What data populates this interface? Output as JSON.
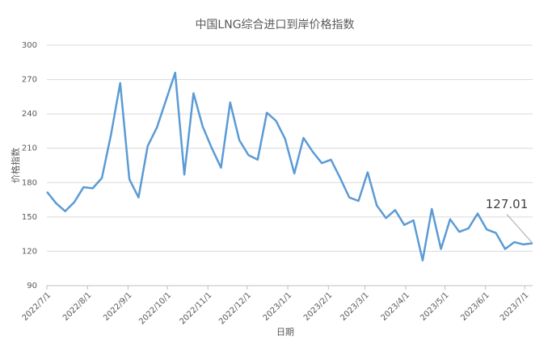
{
  "chart_data": {
    "type": "line",
    "title": "中国LNG综合进口到岸价格指数",
    "x_label": "日期",
    "y_label": "价格指数",
    "x": [
      "2022-07-01",
      "2022-07-08",
      "2022-07-15",
      "2022-07-22",
      "2022-07-29",
      "2022-08-05",
      "2022-08-12",
      "2022-08-19",
      "2022-08-26",
      "2022-09-02",
      "2022-09-09",
      "2022-09-16",
      "2022-09-23",
      "2022-09-30",
      "2022-10-07",
      "2022-10-14",
      "2022-10-21",
      "2022-10-28",
      "2022-11-04",
      "2022-11-11",
      "2022-11-18",
      "2022-11-25",
      "2022-12-02",
      "2022-12-09",
      "2022-12-16",
      "2022-12-23",
      "2022-12-30",
      "2023-01-06",
      "2023-01-13",
      "2023-01-20",
      "2023-01-27",
      "2023-02-03",
      "2023-02-10",
      "2023-02-17",
      "2023-02-24",
      "2023-03-03",
      "2023-03-10",
      "2023-03-17",
      "2023-03-24",
      "2023-03-31",
      "2023-04-07",
      "2023-04-14",
      "2023-04-21",
      "2023-04-28",
      "2023-05-05",
      "2023-05-12",
      "2023-05-19",
      "2023-05-26",
      "2023-06-02",
      "2023-06-09",
      "2023-06-16",
      "2023-06-23",
      "2023-06-30",
      "2023-07-07"
    ],
    "series": [
      {
        "name": "价格指数",
        "color": "#5b9bd5",
        "values": [
          172,
          162,
          155,
          163,
          176,
          175,
          184,
          222,
          267,
          183,
          167,
          212,
          228,
          252,
          276,
          187,
          258,
          229,
          210,
          193,
          250,
          217,
          204,
          200,
          241,
          234,
          218,
          188,
          219,
          207,
          197,
          200,
          184,
          167,
          164,
          189,
          160,
          149,
          156,
          143,
          147,
          112,
          157,
          122,
          148,
          137,
          140,
          153,
          139,
          136,
          122,
          128,
          126,
          127.01
        ]
      }
    ],
    "ylim": [
      90,
      300
    ],
    "yticks": [
      90,
      120,
      150,
      180,
      210,
      240,
      270,
      300
    ],
    "xlim": [
      "2022-07-01",
      "2023-07-07"
    ],
    "xticks": [
      {
        "value": "2022-07-01",
        "label": "2022/7/1"
      },
      {
        "value": "2022-08-01",
        "label": "2022/8/1"
      },
      {
        "value": "2022-09-01",
        "label": "2022/9/1"
      },
      {
        "value": "2022-10-01",
        "label": "2022/10/1"
      },
      {
        "value": "2022-11-01",
        "label": "2022/11/1"
      },
      {
        "value": "2022-12-01",
        "label": "2022/12/1"
      },
      {
        "value": "2023-01-01",
        "label": "2023/1/1"
      },
      {
        "value": "2023-02-01",
        "label": "2023/2/1"
      },
      {
        "value": "2023-03-01",
        "label": "2023/3/1"
      },
      {
        "value": "2023-04-01",
        "label": "2023/4/1"
      },
      {
        "value": "2023-05-01",
        "label": "2023/5/1"
      },
      {
        "value": "2023-06-01",
        "label": "2023/6/1"
      },
      {
        "value": "2023-07-01",
        "label": "2023/7/1"
      }
    ],
    "grid": true
  }
}
